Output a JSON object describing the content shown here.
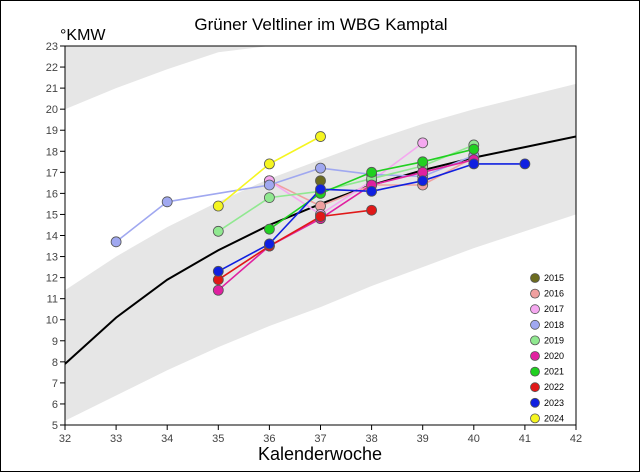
{
  "chart_data": {
    "type": "line",
    "title": "Grüner Veltliner im WBG Kamptal",
    "ylabel": "°KMW",
    "xlabel": "Kalenderwoche",
    "xlim": [
      32,
      42
    ],
    "ylim": [
      5,
      23
    ],
    "x_ticks": [
      32,
      33,
      34,
      35,
      36,
      37,
      38,
      39,
      40,
      41,
      42
    ],
    "y_ticks": [
      5,
      6,
      7,
      8,
      9,
      10,
      11,
      12,
      13,
      14,
      15,
      16,
      17,
      18,
      19,
      20,
      21,
      22,
      23
    ],
    "grid": false,
    "legend_position": "bottom-right",
    "background_bands": "alternating light grey and white curved bands",
    "reference_curve": {
      "x": [
        32,
        33,
        34,
        35,
        36,
        37,
        38,
        39,
        40,
        41,
        42
      ],
      "y": [
        7.9,
        10.1,
        11.9,
        13.3,
        14.5,
        15.5,
        16.4,
        17.1,
        17.7,
        18.2,
        18.7
      ],
      "color": "#000000"
    },
    "band_boundaries": [
      {
        "x": [
          32,
          33,
          34,
          35,
          36,
          37,
          38,
          39,
          40,
          41,
          42
        ],
        "y": [
          5.2,
          6.4,
          7.6,
          8.7,
          9.7,
          10.6,
          11.6,
          12.5,
          13.4,
          14.2,
          15.0
        ]
      },
      {
        "x": [
          32,
          33,
          34,
          35,
          36,
          37,
          38,
          39,
          40,
          41,
          42
        ],
        "y": [
          11.4,
          13.0,
          14.4,
          15.6,
          16.7,
          17.6,
          18.5,
          19.3,
          20.0,
          20.6,
          21.2
        ]
      },
      {
        "x": [
          32,
          33,
          34,
          35,
          36,
          37,
          38,
          39,
          40,
          41,
          42
        ],
        "y": [
          20.0,
          21.0,
          21.9,
          22.7,
          23.0,
          23.0,
          23.0,
          23.0,
          23.0,
          23.0,
          23.0
        ]
      }
    ],
    "series": [
      {
        "name": "2015",
        "color": "#6b6b1f",
        "x": [
          37
        ],
        "y": [
          16.6
        ]
      },
      {
        "name": "2016",
        "color": "#f0a0a0",
        "x": [
          36,
          37,
          38,
          39,
          40
        ],
        "y": [
          16.6,
          15.4,
          16.4,
          16.4,
          17.7
        ]
      },
      {
        "name": "2017",
        "color": "#f5a8f0",
        "x": [
          36,
          37,
          38,
          39
        ],
        "y": [
          16.6,
          15.0,
          16.6,
          18.4
        ]
      },
      {
        "name": "2018",
        "color": "#a0a8f0",
        "x": [
          33,
          34,
          36,
          37,
          38,
          39,
          40
        ],
        "y": [
          13.7,
          15.6,
          16.4,
          17.2,
          16.9,
          16.8,
          17.8
        ]
      },
      {
        "name": "2019",
        "color": "#90e890",
        "x": [
          35,
          36,
          37,
          38,
          39,
          40
        ],
        "y": [
          14.2,
          15.8,
          16.1,
          16.7,
          17.3,
          18.3
        ]
      },
      {
        "name": "2020",
        "color": "#e020a0",
        "x": [
          35,
          36,
          37,
          38,
          39,
          40
        ],
        "y": [
          11.4,
          13.5,
          14.8,
          16.4,
          17.0,
          17.6
        ]
      },
      {
        "name": "2021",
        "color": "#20d020",
        "x": [
          36,
          37,
          38,
          39,
          40
        ],
        "y": [
          14.3,
          16.0,
          17.0,
          17.5,
          18.1
        ]
      },
      {
        "name": "2022",
        "color": "#e01818",
        "x": [
          35,
          36,
          37,
          38
        ],
        "y": [
          11.9,
          13.5,
          14.9,
          15.2
        ]
      },
      {
        "name": "2023",
        "color": "#1020e0",
        "x": [
          35,
          36,
          37,
          38,
          39,
          40,
          41
        ],
        "y": [
          12.3,
          13.6,
          16.2,
          16.1,
          16.6,
          17.4,
          17.4
        ]
      },
      {
        "name": "2024",
        "color": "#f5f520",
        "x": [
          35,
          36,
          37
        ],
        "y": [
          15.4,
          17.4,
          18.7
        ]
      }
    ]
  }
}
